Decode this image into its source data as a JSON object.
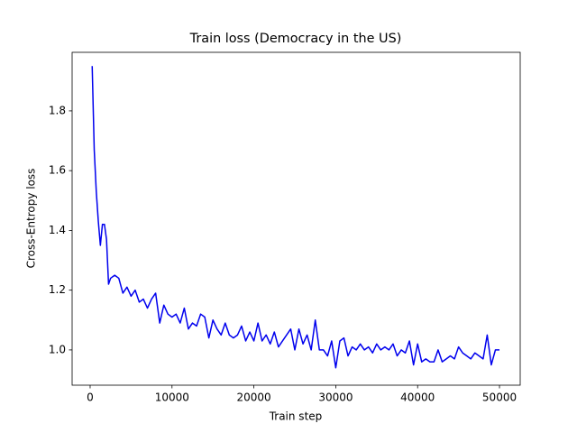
{
  "chart_data": {
    "type": "line",
    "title": "Train loss (Democracy in the US)",
    "x_label": "Train step",
    "y_label": "Cross-Entropy loss",
    "color": "#0000ee",
    "x": [
      250,
      500,
      750,
      1000,
      1250,
      1500,
      1750,
      2000,
      2250,
      2500,
      3000,
      3500,
      4000,
      4500,
      5000,
      5500,
      6000,
      6500,
      7000,
      7500,
      8000,
      8500,
      9000,
      9500,
      10000,
      10500,
      11000,
      11500,
      12000,
      12500,
      13000,
      13500,
      14000,
      14500,
      15000,
      15500,
      16000,
      16500,
      17000,
      17500,
      18000,
      18500,
      19000,
      19500,
      20000,
      20500,
      21000,
      21500,
      22000,
      22500,
      23000,
      23500,
      24000,
      24500,
      25000,
      25500,
      26000,
      26500,
      27000,
      27500,
      28000,
      28500,
      29000,
      29500,
      30000,
      30500,
      31000,
      31500,
      32000,
      32500,
      33000,
      33500,
      34000,
      34500,
      35000,
      35500,
      36000,
      36500,
      37000,
      37500,
      38000,
      38500,
      39000,
      39500,
      40000,
      40500,
      41000,
      41500,
      42000,
      42500,
      43000,
      43500,
      44000,
      44500,
      45000,
      45500,
      46000,
      46500,
      47000,
      47500,
      48000,
      48500,
      49000,
      49500,
      50000
    ],
    "values": [
      1.95,
      1.67,
      1.53,
      1.43,
      1.35,
      1.42,
      1.42,
      1.37,
      1.22,
      1.24,
      1.25,
      1.24,
      1.19,
      1.21,
      1.18,
      1.2,
      1.16,
      1.17,
      1.14,
      1.17,
      1.19,
      1.09,
      1.15,
      1.12,
      1.11,
      1.12,
      1.09,
      1.14,
      1.07,
      1.09,
      1.08,
      1.12,
      1.11,
      1.04,
      1.1,
      1.07,
      1.05,
      1.09,
      1.05,
      1.04,
      1.05,
      1.08,
      1.03,
      1.06,
      1.03,
      1.09,
      1.03,
      1.05,
      1.02,
      1.06,
      1.01,
      1.03,
      1.05,
      1.07,
      1.0,
      1.07,
      1.02,
      1.05,
      1.0,
      1.1,
      1.0,
      1.0,
      0.98,
      1.03,
      0.94,
      1.03,
      1.04,
      0.98,
      1.01,
      1.0,
      1.02,
      1.0,
      1.01,
      0.99,
      1.02,
      1.0,
      1.01,
      1.0,
      1.02,
      0.98,
      1.0,
      0.99,
      1.03,
      0.95,
      1.02,
      0.96,
      0.97,
      0.96,
      0.96,
      1.0,
      0.96,
      0.97,
      0.98,
      0.97,
      1.01,
      0.99,
      0.98,
      0.97,
      0.99,
      0.98,
      0.97,
      1.05,
      0.95,
      1.0,
      1.0
    ],
    "xlim": [
      -2200,
      52530
    ],
    "ylim": [
      0.882,
      1.996
    ],
    "xticks": [
      0,
      10000,
      20000,
      30000,
      40000,
      50000
    ],
    "yticks": [
      {
        "value": 1,
        "label": "1.0"
      },
      1.2,
      1.4,
      1.6,
      1.8
    ]
  }
}
